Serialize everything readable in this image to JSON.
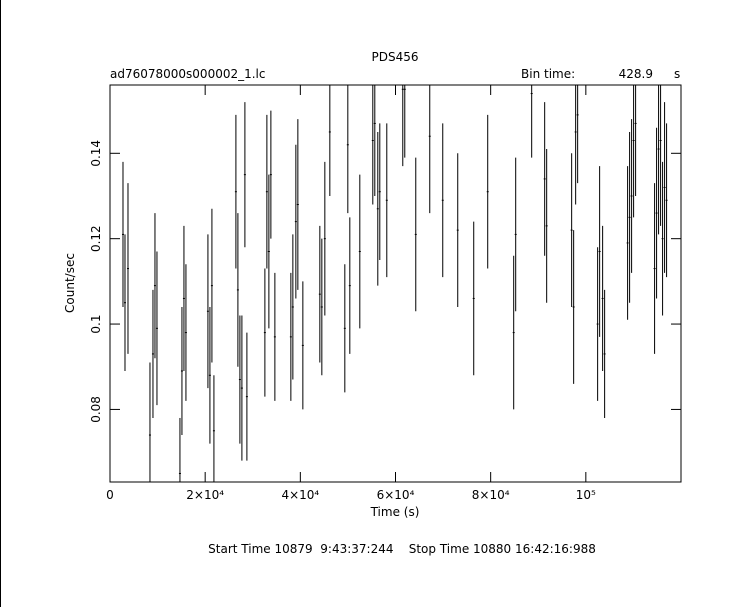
{
  "chart_data": {
    "type": "errorbar",
    "title": "PDS456",
    "file_name": "ad76078000s000002_1.lc",
    "bin_time_label": "Bin time:",
    "bin_time": 428.9,
    "bin_time_unit": "s",
    "xlabel": "Time (s)",
    "ylabel": "Count/sec",
    "footer": "Start Time 10879  9:43:37:244    Stop Time 10880 16:42:16:988",
    "xlim": [
      0,
      120000
    ],
    "ylim": [
      0.063,
      0.156
    ],
    "xticks": [
      0,
      {
        "value": 20000,
        "label": "2×10⁴"
      },
      {
        "value": 40000,
        "label": "4×10⁴"
      },
      {
        "value": 60000,
        "label": "6×10⁴"
      },
      {
        "value": 80000,
        "label": "8×10⁴"
      },
      {
        "value": 100000,
        "label": "10⁵"
      }
    ],
    "yticks": [
      0.08,
      0.1,
      0.12,
      0.14
    ],
    "color": "#000000",
    "series": [
      {
        "name": "Count/sec",
        "x": [
          2730,
          3150,
          3780,
          8400,
          9030,
          9450,
          9870,
          14700,
          15120,
          15540,
          15960,
          20580,
          21000,
          21420,
          21840,
          26460,
          26880,
          27300,
          27720,
          28350,
          28770,
          32550,
          32970,
          33390,
          33810,
          34650,
          38010,
          38430,
          39060,
          39480,
          40530,
          44100,
          44520,
          45150,
          46200,
          49350,
          49980,
          50400,
          52500,
          55230,
          55650,
          56280,
          56700,
          58170,
          61530,
          61950,
          64260,
          67200,
          69930,
          73080,
          76440,
          79380,
          84840,
          85260,
          88620,
          91350,
          91770,
          97020,
          97440,
          97860,
          98280,
          102480,
          102900,
          103530,
          103950,
          108780,
          109200,
          109620,
          110040,
          110460,
          114450,
          114870,
          115290,
          115710,
          116130,
          116550,
          116970
        ],
        "values": [
          0.121,
          0.105,
          0.113,
          0.074,
          0.093,
          0.109,
          0.099,
          0.065,
          0.089,
          0.106,
          0.098,
          0.103,
          0.088,
          0.109,
          0.075,
          0.131,
          0.108,
          0.087,
          0.085,
          0.135,
          0.083,
          0.098,
          0.131,
          0.117,
          0.135,
          0.097,
          0.097,
          0.104,
          0.124,
          0.128,
          0.095,
          0.107,
          0.104,
          0.12,
          0.145,
          0.099,
          0.142,
          0.109,
          0.117,
          0.143,
          0.147,
          0.127,
          0.131,
          0.129,
          0.155,
          0.155,
          0.121,
          0.144,
          0.129,
          0.122,
          0.106,
          0.131,
          0.098,
          0.121,
          0.154,
          0.134,
          0.123,
          0.122,
          0.104,
          0.145,
          0.149,
          0.1,
          0.117,
          0.106,
          0.093,
          0.119,
          0.125,
          0.13,
          0.143,
          0.147,
          0.113,
          0.126,
          0.141,
          0.143,
          0.12,
          0.132,
          0.129
        ],
        "errors": [
          0.017,
          0.016,
          0.02,
          0.017,
          0.015,
          0.017,
          0.018,
          0.013,
          0.015,
          0.017,
          0.016,
          0.018,
          0.016,
          0.018,
          0.013,
          0.018,
          0.018,
          0.015,
          0.017,
          0.017,
          0.015,
          0.015,
          0.018,
          0.018,
          0.015,
          0.015,
          0.015,
          0.017,
          0.018,
          0.02,
          0.015,
          0.016,
          0.016,
          0.018,
          0.015,
          0.015,
          0.016,
          0.016,
          0.018,
          0.015,
          0.017,
          0.018,
          0.016,
          0.018,
          0.018,
          0.016,
          0.018,
          0.018,
          0.018,
          0.018,
          0.018,
          0.018,
          0.018,
          0.018,
          0.015,
          0.018,
          0.018,
          0.018,
          0.018,
          0.017,
          0.016,
          0.018,
          0.02,
          0.017,
          0.015,
          0.018,
          0.02,
          0.018,
          0.018,
          0.017,
          0.02,
          0.02,
          0.02,
          0.02,
          0.018,
          0.02,
          0.018
        ]
      }
    ]
  }
}
